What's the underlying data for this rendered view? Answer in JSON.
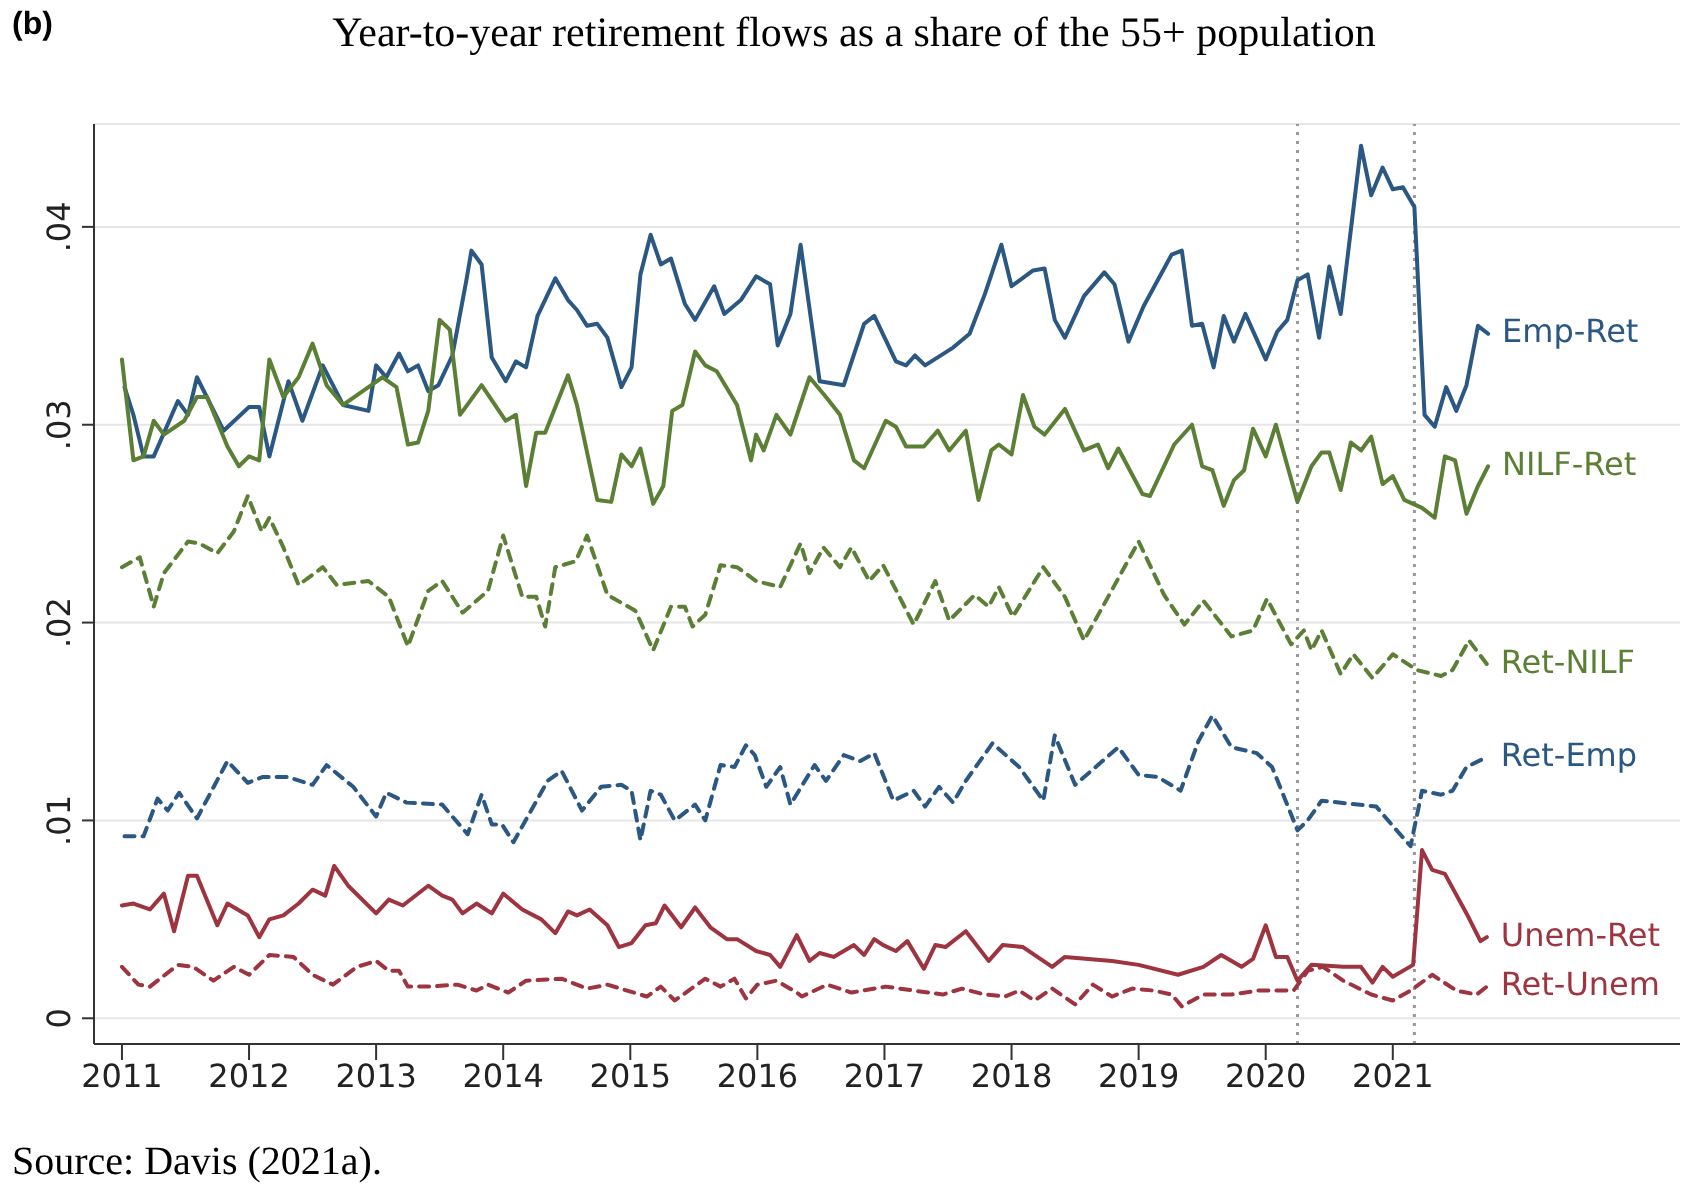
{
  "chart_data": {
    "type": "line",
    "title": "Year-to-year retirement flows as a share of the 55+ population",
    "annotations": [
      "(b)",
      "Source: Davis (2021a)."
    ],
    "xlim": [
      2010.78,
      2023.26
    ],
    "ylim": [
      -0.0013,
      0.0452
    ],
    "xticks": [
      2011,
      2012,
      2013,
      2014,
      2015,
      2016,
      2017,
      2018,
      2019,
      2020,
      2021
    ],
    "yticks": [
      {
        "value": 0,
        "label": "0"
      },
      {
        "value": 0.01,
        "label": ".01"
      },
      {
        "value": 0.02,
        "label": ".02"
      },
      {
        "value": 0.03,
        "label": ".03"
      },
      {
        "value": 0.04,
        "label": ".04"
      }
    ],
    "grid": "y",
    "marker": "none",
    "ref_lines": [
      {
        "axis": "x",
        "value": 2020.25,
        "label": null,
        "color": "#999999",
        "line_style": "dotted"
      },
      {
        "axis": "x",
        "value": 2021.17,
        "label": null,
        "color": "#999999",
        "line_style": "dotted"
      }
    ],
    "series": [
      {
        "name": "Emp-Ret",
        "color": "#2b5783",
        "line_style": "solid",
        "x": [
          2011.02,
          2011.09,
          2011.17,
          2011.25,
          2011.44,
          2011.52,
          2011.59,
          2011.8,
          2012.0,
          2012.08,
          2012.16,
          2012.31,
          2012.42,
          2012.58,
          2012.74,
          2012.94,
          2013.0,
          2013.08,
          2013.18,
          2013.25,
          2013.33,
          2013.41,
          2013.49,
          2013.6,
          2013.71,
          2013.75,
          2013.83,
          2013.91,
          2014.02,
          2014.1,
          2014.18,
          2014.27,
          2014.41,
          2014.51,
          2014.58,
          2014.66,
          2014.74,
          2014.82,
          2014.93,
          2015.01,
          2015.08,
          2015.16,
          2015.24,
          2015.32,
          2015.43,
          2015.51,
          2015.66,
          2015.74,
          2015.87,
          2015.99,
          2016.1,
          2016.16,
          2016.26,
          2016.34,
          2016.49,
          2016.68,
          2016.84,
          2016.92,
          2017.09,
          2017.17,
          2017.24,
          2017.32,
          2017.54,
          2017.67,
          2017.79,
          2017.92,
          2018.0,
          2018.17,
          2018.26,
          2018.34,
          2018.42,
          2018.57,
          2018.73,
          2018.81,
          2018.92,
          2019.04,
          2019.15,
          2019.26,
          2019.34,
          2019.42,
          2019.5,
          2019.59,
          2019.67,
          2019.75,
          2019.84,
          2020.0,
          2020.09,
          2020.17,
          2020.25,
          2020.33,
          2020.42,
          2020.5,
          2020.59,
          2020.75,
          2020.83,
          2020.92,
          2021.0,
          2021.08,
          2021.17,
          2021.25,
          2021.33,
          2021.42,
          2021.5,
          2021.58,
          2021.67,
          2021.75
        ],
        "values": [
          0.0319,
          0.0305,
          0.0284,
          0.0284,
          0.0312,
          0.0305,
          0.0324,
          0.0297,
          0.0309,
          0.0309,
          0.0284,
          0.0322,
          0.0302,
          0.033,
          0.031,
          0.0307,
          0.033,
          0.0324,
          0.0336,
          0.0327,
          0.033,
          0.0317,
          0.032,
          0.0335,
          0.0373,
          0.0388,
          0.0381,
          0.0334,
          0.0322,
          0.0332,
          0.0329,
          0.0355,
          0.0374,
          0.0363,
          0.0358,
          0.035,
          0.0351,
          0.0344,
          0.0319,
          0.0329,
          0.0376,
          0.0396,
          0.0381,
          0.0384,
          0.0361,
          0.0353,
          0.037,
          0.0356,
          0.0363,
          0.0375,
          0.0371,
          0.034,
          0.0356,
          0.0391,
          0.0322,
          0.032,
          0.0351,
          0.0355,
          0.0332,
          0.033,
          0.0335,
          0.033,
          0.0339,
          0.0346,
          0.0366,
          0.0391,
          0.037,
          0.0378,
          0.0379,
          0.0353,
          0.0344,
          0.0365,
          0.0377,
          0.0371,
          0.0342,
          0.036,
          0.0373,
          0.0386,
          0.0388,
          0.035,
          0.0351,
          0.0329,
          0.0355,
          0.0342,
          0.0356,
          0.0333,
          0.0347,
          0.0353,
          0.0373,
          0.0376,
          0.0344,
          0.038,
          0.0356,
          0.0441,
          0.0416,
          0.043,
          0.0419,
          0.042,
          0.041,
          0.0305,
          0.0299,
          0.0319,
          0.0307,
          0.032,
          0.035,
          0.0346
        ]
      },
      {
        "name": "NILF-Ret",
        "color": "#5b7f35",
        "line_style": "solid",
        "x": [
          2011.0,
          2011.09,
          2011.17,
          2011.25,
          2011.33,
          2011.49,
          2011.59,
          2011.67,
          2011.83,
          2011.92,
          2012.0,
          2012.08,
          2012.16,
          2012.27,
          2012.39,
          2012.5,
          2012.61,
          2012.74,
          2012.94,
          2013.05,
          2013.16,
          2013.25,
          2013.33,
          2013.41,
          2013.5,
          2013.58,
          2013.66,
          2013.83,
          2014.02,
          2014.1,
          2014.18,
          2014.26,
          2014.33,
          2014.51,
          2014.58,
          2014.74,
          2014.85,
          2014.93,
          2015.01,
          2015.08,
          2015.18,
          2015.26,
          2015.33,
          2015.41,
          2015.51,
          2015.59,
          2015.68,
          2015.84,
          2015.95,
          2015.99,
          2016.05,
          2016.15,
          2016.26,
          2016.41,
          2016.54,
          2016.65,
          2016.76,
          2016.84,
          2017.01,
          2017.09,
          2017.17,
          2017.31,
          2017.42,
          2017.51,
          2017.64,
          2017.74,
          2017.84,
          2017.9,
          2018.0,
          2018.09,
          2018.18,
          2018.26,
          2018.42,
          2018.57,
          2018.68,
          2018.76,
          2018.84,
          2019.03,
          2019.09,
          2019.28,
          2019.42,
          2019.5,
          2019.58,
          2019.67,
          2019.75,
          2019.83,
          2019.9,
          2020.0,
          2020.08,
          2020.25,
          2020.36,
          2020.44,
          2020.5,
          2020.59,
          2020.67,
          2020.75,
          2020.83,
          2020.92,
          2021.0,
          2021.09,
          2021.23,
          2021.33,
          2021.41,
          2021.49,
          2021.58,
          2021.67,
          2021.75
        ],
        "values": [
          0.0333,
          0.0282,
          0.0284,
          0.0302,
          0.0295,
          0.0302,
          0.0314,
          0.0314,
          0.0289,
          0.0279,
          0.0284,
          0.0282,
          0.0333,
          0.0314,
          0.0324,
          0.0341,
          0.032,
          0.031,
          0.0319,
          0.0324,
          0.0319,
          0.029,
          0.0291,
          0.0307,
          0.0353,
          0.0348,
          0.0305,
          0.032,
          0.0302,
          0.0305,
          0.0269,
          0.0296,
          0.0296,
          0.0325,
          0.031,
          0.0262,
          0.0261,
          0.0285,
          0.0279,
          0.0288,
          0.026,
          0.0269,
          0.0307,
          0.031,
          0.0337,
          0.033,
          0.0327,
          0.031,
          0.0282,
          0.0295,
          0.0287,
          0.0305,
          0.0295,
          0.0324,
          0.0314,
          0.0305,
          0.0282,
          0.0278,
          0.0302,
          0.0299,
          0.0289,
          0.0289,
          0.0297,
          0.0287,
          0.0297,
          0.0262,
          0.0287,
          0.029,
          0.0285,
          0.0315,
          0.0299,
          0.0295,
          0.0308,
          0.0287,
          0.029,
          0.0278,
          0.0288,
          0.0265,
          0.0264,
          0.029,
          0.03,
          0.0279,
          0.0277,
          0.0259,
          0.0272,
          0.0277,
          0.0298,
          0.0284,
          0.03,
          0.0261,
          0.0279,
          0.0286,
          0.0286,
          0.0267,
          0.0291,
          0.0287,
          0.0294,
          0.027,
          0.0274,
          0.0262,
          0.0258,
          0.0253,
          0.0284,
          0.0282,
          0.0255,
          0.0269,
          0.0279
        ]
      },
      {
        "name": "Ret-NILF",
        "color": "#5b7f35",
        "line_style": "dashed",
        "x": [
          2011.0,
          2011.14,
          2011.25,
          2011.33,
          2011.52,
          2011.61,
          2011.75,
          2011.88,
          2011.99,
          2012.1,
          2012.16,
          2012.27,
          2012.39,
          2012.58,
          2012.69,
          2012.94,
          2013.1,
          2013.25,
          2013.41,
          2013.52,
          2013.68,
          2013.88,
          2014.0,
          2014.15,
          2014.26,
          2014.33,
          2014.41,
          2014.57,
          2014.66,
          2014.82,
          2015.04,
          2015.18,
          2015.32,
          2015.43,
          2015.49,
          2015.59,
          2015.71,
          2015.84,
          2015.99,
          2016.18,
          2016.34,
          2016.41,
          2016.52,
          2016.65,
          2016.74,
          2016.88,
          2016.99,
          2017.23,
          2017.4,
          2017.51,
          2017.71,
          2017.82,
          2017.9,
          2018.01,
          2018.25,
          2018.42,
          2018.57,
          2018.76,
          2019.0,
          2019.2,
          2019.36,
          2019.51,
          2019.73,
          2019.9,
          2020.01,
          2020.2,
          2020.3,
          2020.36,
          2020.44,
          2020.59,
          2020.69,
          2020.84,
          2021.0,
          2021.19,
          2021.38,
          2021.47,
          2021.6,
          2021.74
        ],
        "values": [
          0.0228,
          0.0233,
          0.0208,
          0.0225,
          0.0241,
          0.024,
          0.0235,
          0.0246,
          0.0264,
          0.0246,
          0.0253,
          0.0238,
          0.0219,
          0.0228,
          0.0219,
          0.0221,
          0.0213,
          0.0188,
          0.0216,
          0.0221,
          0.0205,
          0.0216,
          0.0244,
          0.0213,
          0.0213,
          0.0198,
          0.0228,
          0.0231,
          0.0244,
          0.0214,
          0.0206,
          0.0186,
          0.0208,
          0.0208,
          0.0198,
          0.0204,
          0.0229,
          0.0228,
          0.0221,
          0.0218,
          0.024,
          0.0225,
          0.0238,
          0.0228,
          0.0238,
          0.0221,
          0.0229,
          0.0199,
          0.0221,
          0.0201,
          0.0214,
          0.0208,
          0.0218,
          0.0203,
          0.0228,
          0.0213,
          0.0191,
          0.0213,
          0.0241,
          0.0214,
          0.0199,
          0.0211,
          0.0193,
          0.0196,
          0.0212,
          0.0189,
          0.0196,
          0.0186,
          0.0196,
          0.0174,
          0.0184,
          0.0172,
          0.0184,
          0.0176,
          0.0173,
          0.0176,
          0.0191,
          0.0179
        ]
      },
      {
        "name": "Ret-Emp",
        "color": "#2b5783",
        "line_style": "dashed",
        "x": [
          2011.02,
          2011.17,
          2011.28,
          2011.36,
          2011.45,
          2011.59,
          2011.83,
          2011.99,
          2012.11,
          2012.3,
          2012.5,
          2012.61,
          2012.82,
          2013.0,
          2013.08,
          2013.24,
          2013.52,
          2013.72,
          2013.83,
          2013.91,
          2013.99,
          2014.08,
          2014.35,
          2014.46,
          2014.62,
          2014.77,
          2014.93,
          2015.01,
          2015.08,
          2015.16,
          2015.24,
          2015.35,
          2015.51,
          2015.59,
          2015.71,
          2015.82,
          2015.91,
          2015.98,
          2016.07,
          2016.18,
          2016.26,
          2016.45,
          2016.54,
          2016.68,
          2016.81,
          2016.92,
          2017.07,
          2017.23,
          2017.32,
          2017.43,
          2017.54,
          2017.64,
          2017.85,
          2018.06,
          2018.25,
          2018.34,
          2018.5,
          2018.68,
          2018.84,
          2019.0,
          2019.15,
          2019.33,
          2019.47,
          2019.58,
          2019.73,
          2019.93,
          2020.05,
          2020.25,
          2020.33,
          2020.44,
          2020.87,
          2021.03,
          2021.14,
          2021.23,
          2021.38,
          2021.47,
          2021.58,
          2021.74
        ],
        "values": [
          0.0092,
          0.0092,
          0.0111,
          0.0105,
          0.0114,
          0.0101,
          0.013,
          0.0119,
          0.0122,
          0.0122,
          0.0118,
          0.0128,
          0.0117,
          0.0102,
          0.0114,
          0.0109,
          0.0108,
          0.0093,
          0.0113,
          0.0098,
          0.0098,
          0.0089,
          0.012,
          0.0125,
          0.0105,
          0.0117,
          0.0118,
          0.0115,
          0.009,
          0.0115,
          0.0113,
          0.01,
          0.0108,
          0.01,
          0.0128,
          0.0127,
          0.0138,
          0.0133,
          0.0117,
          0.0127,
          0.0108,
          0.0128,
          0.012,
          0.0133,
          0.013,
          0.0134,
          0.011,
          0.0115,
          0.0107,
          0.0117,
          0.0109,
          0.012,
          0.0139,
          0.0127,
          0.011,
          0.0143,
          0.0118,
          0.0128,
          0.0137,
          0.0123,
          0.0122,
          0.0115,
          0.014,
          0.0153,
          0.0137,
          0.0134,
          0.0127,
          0.0095,
          0.01,
          0.011,
          0.0107,
          0.0095,
          0.0087,
          0.0115,
          0.0113,
          0.0115,
          0.0127,
          0.0132
        ]
      },
      {
        "name": "Unem-Ret",
        "color": "#9e3440",
        "line_style": "solid",
        "x": [
          2011.0,
          2011.09,
          2011.22,
          2011.33,
          2011.41,
          2011.52,
          2011.59,
          2011.75,
          2011.83,
          2011.99,
          2012.08,
          2012.16,
          2012.27,
          2012.39,
          2012.5,
          2012.6,
          2012.67,
          2012.78,
          2013.0,
          2013.1,
          2013.21,
          2013.41,
          2013.52,
          2013.6,
          2013.68,
          2013.79,
          2013.91,
          2014.0,
          2014.15,
          2014.3,
          2014.41,
          2014.51,
          2014.58,
          2014.68,
          2014.82,
          2014.91,
          2015.01,
          2015.12,
          2015.2,
          2015.27,
          2015.4,
          2015.51,
          2015.63,
          2015.76,
          2015.84,
          2015.99,
          2016.1,
          2016.18,
          2016.31,
          2016.41,
          2016.49,
          2016.6,
          2016.76,
          2016.84,
          2016.92,
          2016.99,
          2017.09,
          2017.18,
          2017.31,
          2017.4,
          2017.48,
          2017.64,
          2017.82,
          2017.93,
          2018.09,
          2018.32,
          2018.42,
          2018.79,
          2019.0,
          2019.31,
          2019.51,
          2019.65,
          2019.81,
          2019.9,
          2020.0,
          2020.08,
          2020.17,
          2020.25,
          2020.36,
          2020.61,
          2020.75,
          2020.84,
          2020.92,
          2021.0,
          2021.16,
          2021.23,
          2021.31,
          2021.41,
          2021.58,
          2021.69,
          2021.74
        ],
        "values": [
          0.0057,
          0.0058,
          0.0055,
          0.0063,
          0.0044,
          0.0072,
          0.0072,
          0.0047,
          0.0058,
          0.0052,
          0.0041,
          0.005,
          0.0052,
          0.0058,
          0.0065,
          0.0062,
          0.0077,
          0.0067,
          0.0053,
          0.006,
          0.0057,
          0.0067,
          0.0062,
          0.006,
          0.0053,
          0.0058,
          0.0053,
          0.0063,
          0.0055,
          0.005,
          0.0043,
          0.0054,
          0.0052,
          0.0055,
          0.0047,
          0.0036,
          0.0038,
          0.0047,
          0.0048,
          0.0057,
          0.0046,
          0.0056,
          0.0046,
          0.004,
          0.004,
          0.0034,
          0.0032,
          0.0026,
          0.0042,
          0.0029,
          0.0033,
          0.0031,
          0.0037,
          0.0032,
          0.004,
          0.0037,
          0.0034,
          0.0039,
          0.0025,
          0.0037,
          0.0036,
          0.0044,
          0.0029,
          0.0037,
          0.0036,
          0.0026,
          0.0031,
          0.0029,
          0.0027,
          0.0022,
          0.0026,
          0.0032,
          0.0026,
          0.003,
          0.0047,
          0.0031,
          0.0031,
          0.0019,
          0.0027,
          0.0026,
          0.0026,
          0.0018,
          0.0026,
          0.0021,
          0.0027,
          0.0085,
          0.0075,
          0.0073,
          0.0053,
          0.0039,
          0.0041
        ]
      },
      {
        "name": "Ret-Unem",
        "color": "#9e3440",
        "line_style": "dashed",
        "x": [
          2011.0,
          2011.13,
          2011.22,
          2011.44,
          2011.56,
          2011.72,
          2011.88,
          2012.0,
          2012.16,
          2012.35,
          2012.5,
          2012.66,
          2012.85,
          2013.0,
          2013.1,
          2013.18,
          2013.25,
          2013.41,
          2013.64,
          2013.79,
          2013.88,
          2014.04,
          2014.18,
          2014.46,
          2014.66,
          2014.82,
          2015.13,
          2015.24,
          2015.35,
          2015.59,
          2015.71,
          2015.82,
          2015.91,
          2016.0,
          2016.15,
          2016.31,
          2016.35,
          2016.55,
          2016.74,
          2017.01,
          2017.23,
          2017.46,
          2017.61,
          2017.79,
          2017.95,
          2018.06,
          2018.18,
          2018.32,
          2018.5,
          2018.64,
          2018.79,
          2018.95,
          2019.12,
          2019.26,
          2019.34,
          2019.51,
          2019.73,
          2019.94,
          2020.22,
          2020.33,
          2020.45,
          2020.61,
          2020.83,
          2021.0,
          2021.14,
          2021.31,
          2021.5,
          2021.66,
          2021.74
        ],
        "values": [
          0.0026,
          0.0017,
          0.0016,
          0.0027,
          0.0026,
          0.0019,
          0.0026,
          0.0022,
          0.0032,
          0.0031,
          0.0022,
          0.0017,
          0.0026,
          0.0029,
          0.0024,
          0.0024,
          0.0016,
          0.0016,
          0.0017,
          0.0014,
          0.0017,
          0.0013,
          0.0019,
          0.002,
          0.0015,
          0.0017,
          0.0011,
          0.0016,
          0.0009,
          0.002,
          0.0016,
          0.002,
          0.001,
          0.0017,
          0.0019,
          0.0013,
          0.0011,
          0.0017,
          0.0013,
          0.0016,
          0.0014,
          0.0012,
          0.0015,
          0.0012,
          0.0011,
          0.0014,
          0.0009,
          0.0015,
          0.0007,
          0.0017,
          0.0011,
          0.0015,
          0.0014,
          0.0012,
          0.0006,
          0.0012,
          0.0012,
          0.0014,
          0.0014,
          0.0024,
          0.0026,
          0.0019,
          0.0012,
          0.0009,
          0.0014,
          0.0022,
          0.0014,
          0.0012,
          0.0016
        ]
      }
    ]
  }
}
